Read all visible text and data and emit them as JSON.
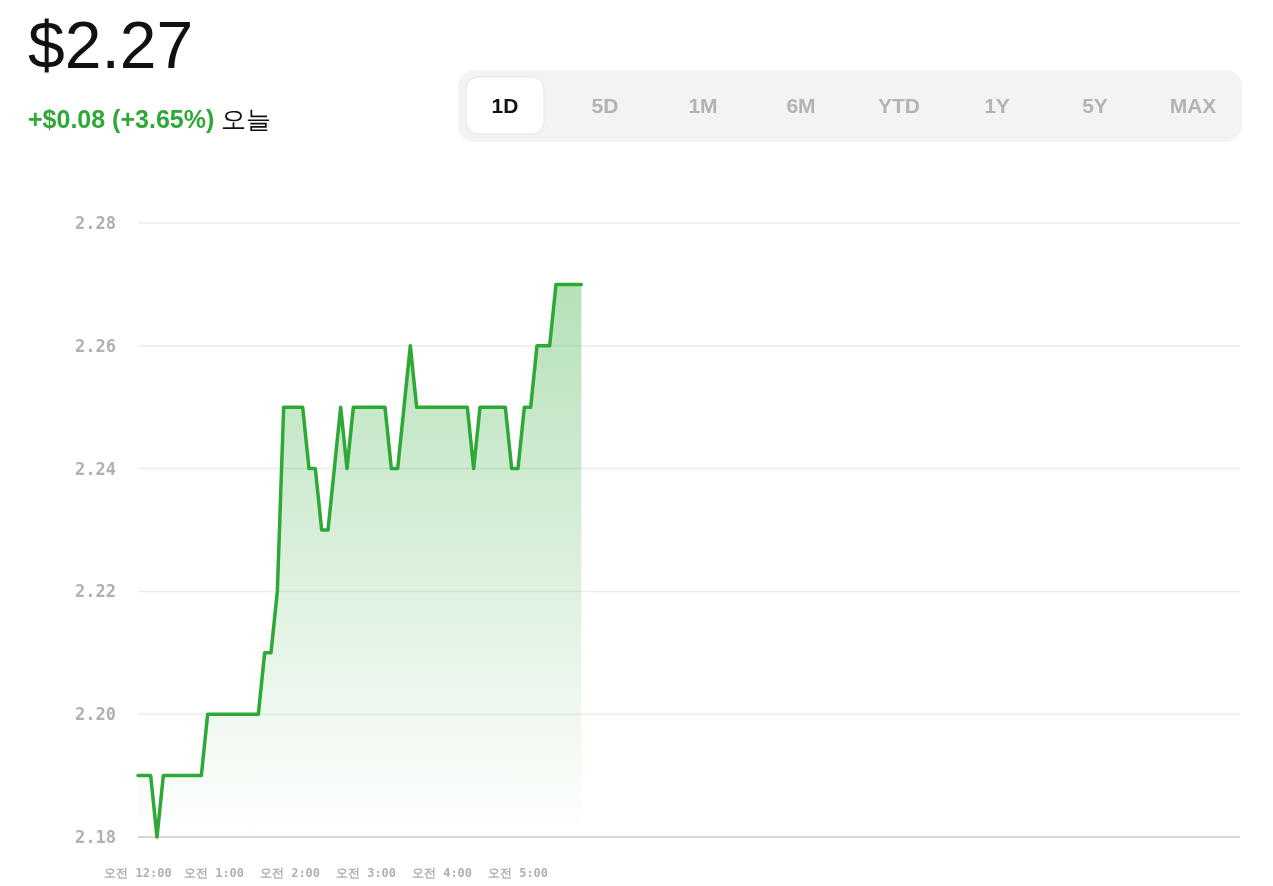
{
  "chart_data": {
    "type": "area",
    "title": "$2.27",
    "subtitle": "+$0.08 (+3.65%) 오늘",
    "annotations": [
      "1D",
      "5D",
      "1M",
      "6M",
      "YTD",
      "1Y",
      "5Y",
      "MAX"
    ],
    "categories": [
      "오전 12:00",
      null,
      null,
      null,
      null,
      null,
      null,
      null,
      null,
      null,
      null,
      null,
      "오전 1:00",
      null,
      null,
      null,
      null,
      null,
      null,
      null,
      null,
      null,
      null,
      null,
      "오전 2:00",
      null,
      null,
      null,
      null,
      null,
      null,
      null,
      null,
      null,
      null,
      null,
      "오전 3:00",
      null,
      null,
      null,
      null,
      null,
      null,
      null,
      null,
      null,
      null,
      null,
      "오전 4:00",
      null,
      null,
      null,
      null,
      null,
      null,
      null,
      null,
      null,
      null,
      null,
      "오전 5:00",
      null,
      null,
      null,
      null,
      null,
      null,
      null,
      null,
      null,
      null,
      null,
      null,
      null,
      null,
      null,
      null,
      null,
      null,
      null,
      null,
      null,
      null,
      null,
      null,
      null,
      null,
      null,
      null,
      null,
      null,
      null,
      null,
      null,
      null,
      null,
      null,
      null,
      null,
      null,
      null,
      null,
      null,
      null,
      null,
      null,
      null,
      null,
      null,
      null,
      null,
      null,
      null,
      null,
      null,
      null,
      null,
      null,
      null,
      null,
      null,
      null,
      null,
      null,
      null,
      null,
      null,
      null,
      null,
      null,
      null,
      null,
      null,
      null,
      null,
      null,
      null,
      null,
      null,
      null,
      null,
      null,
      null,
      null,
      null,
      null,
      null,
      null,
      null,
      null,
      null,
      null,
      null,
      null,
      null,
      null,
      null,
      null,
      null,
      null,
      null,
      null,
      null,
      null,
      null,
      null,
      null,
      null,
      null,
      null,
      null,
      null,
      null,
      null,
      null
    ],
    "series": [
      {
        "color": "#2ea836",
        "values": [
          2.19,
          2.19,
          2.19,
          2.18,
          2.19,
          2.19,
          2.19,
          2.19,
          2.19,
          2.19,
          2.19,
          2.2,
          2.2,
          2.2,
          2.2,
          2.2,
          2.2,
          2.2,
          2.2,
          2.2,
          2.21,
          2.21,
          2.22,
          2.25,
          2.25,
          2.25,
          2.25,
          2.24,
          2.24,
          2.23,
          2.23,
          2.24,
          2.25,
          2.24,
          2.25,
          2.25,
          2.25,
          2.25,
          2.25,
          2.25,
          2.24,
          2.24,
          2.25,
          2.26,
          2.25,
          2.25,
          2.25,
          2.25,
          2.25,
          2.25,
          2.25,
          2.25,
          2.25,
          2.24,
          2.25,
          2.25,
          2.25,
          2.25,
          2.25,
          2.24,
          2.24,
          2.25,
          2.25,
          2.26,
          2.26,
          2.26,
          2.27,
          2.27,
          2.27,
          2.27,
          2.27,
          null,
          null,
          null,
          null,
          null,
          null,
          null,
          null,
          null,
          null,
          null,
          null,
          null,
          null,
          null,
          null,
          null,
          null,
          null,
          null,
          null,
          null,
          null,
          null,
          null,
          null,
          null,
          null,
          null,
          null,
          null,
          null,
          null,
          null,
          null,
          null,
          null,
          null,
          null,
          null,
          null,
          null,
          null,
          null,
          null,
          null,
          null,
          null,
          null,
          null,
          null,
          null,
          null,
          null,
          null,
          null,
          null,
          null,
          null,
          null,
          null,
          null,
          null,
          null,
          null,
          null,
          null,
          null,
          null,
          null,
          null,
          null,
          null,
          null,
          null,
          null,
          null,
          null,
          null,
          null,
          null,
          null,
          null,
          null,
          null,
          null,
          null,
          null,
          null,
          null,
          null,
          null,
          null,
          null,
          null,
          null,
          null,
          null,
          null,
          null,
          null,
          null,
          null,
          null
        ]
      }
    ],
    "ylim": [
      2.18,
      2.28
    ],
    "yticks": [
      {
        "value": 2.18,
        "label": "2.18"
      },
      {
        "value": 2.2,
        "label": "2.20"
      },
      {
        "value": 2.22,
        "label": "2.22"
      },
      {
        "value": 2.24,
        "label": "2.24"
      },
      {
        "value": 2.26,
        "label": "2.26"
      },
      {
        "value": 2.28,
        "label": "2.28"
      }
    ],
    "grid": "y",
    "marker": "none",
    "line_style": "solid"
  }
}
